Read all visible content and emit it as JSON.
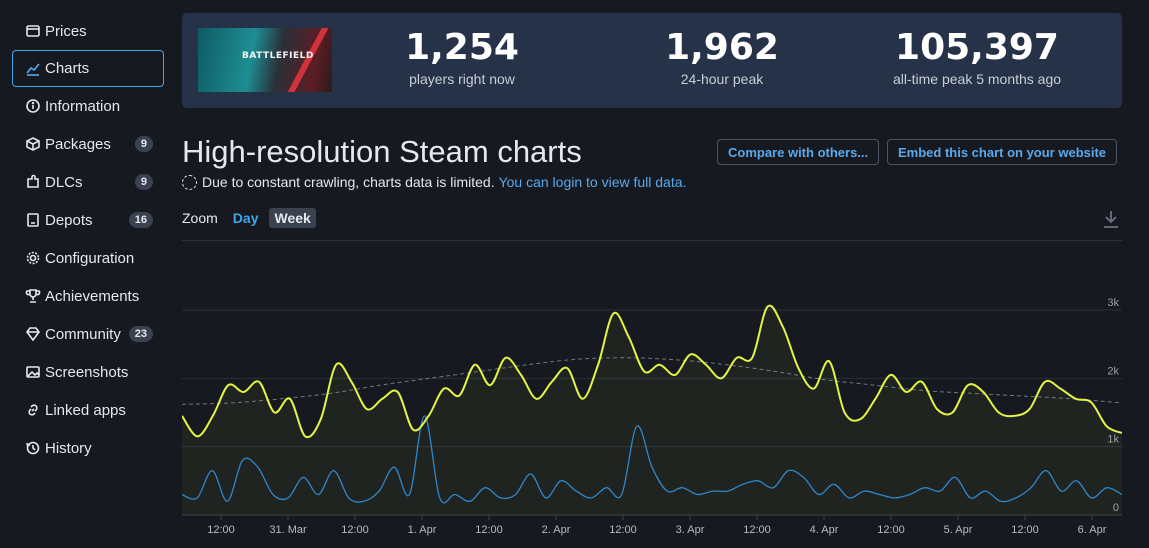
{
  "sidebar": {
    "items": [
      {
        "label": "Prices",
        "icon": "price-tag-icon",
        "active": false,
        "badge": ""
      },
      {
        "label": "Charts",
        "icon": "line-chart-icon",
        "active": true,
        "badge": ""
      },
      {
        "label": "Information",
        "icon": "info-icon",
        "active": false,
        "badge": ""
      },
      {
        "label": "Packages",
        "icon": "box-icon",
        "active": false,
        "badge": "9"
      },
      {
        "label": "DLCs",
        "icon": "puzzle-icon",
        "active": false,
        "badge": "9"
      },
      {
        "label": "Depots",
        "icon": "server-icon",
        "active": false,
        "badge": "16"
      },
      {
        "label": "Configuration",
        "icon": "gear-icon",
        "active": false,
        "badge": ""
      },
      {
        "label": "Achievements",
        "icon": "trophy-icon",
        "active": false,
        "badge": ""
      },
      {
        "label": "Community",
        "icon": "diamond-icon",
        "active": false,
        "badge": "23"
      },
      {
        "label": "Screenshots",
        "icon": "image-icon",
        "active": false,
        "badge": ""
      },
      {
        "label": "Linked apps",
        "icon": "link-icon",
        "active": false,
        "badge": ""
      },
      {
        "label": "History",
        "icon": "history-icon",
        "active": false,
        "badge": ""
      }
    ]
  },
  "banner": {
    "game_logo_text": "BATTLEFIELD",
    "stats": [
      {
        "value": "1,254",
        "label": "players right now"
      },
      {
        "value": "1,962",
        "label": "24-hour peak"
      },
      {
        "value": "105,397",
        "label": "all-time peak 5 months ago"
      }
    ]
  },
  "heading": {
    "title": "High-resolution Steam charts",
    "compare_button": "Compare with others...",
    "embed_button": "Embed this chart on your website",
    "notice_text": "Due to constant crawling, charts data is limited.",
    "notice_link": "You can login to view full data."
  },
  "zoom": {
    "label": "Zoom",
    "options": [
      "Day",
      "Week"
    ],
    "selected": "Week"
  },
  "colors": {
    "accent": "#3ea6ef",
    "players_line": "#e3f542",
    "twitch_line": "#2f86c9",
    "average_line": "#8a8f99"
  },
  "chart_data": {
    "type": "line",
    "x_labels": [
      "12:00",
      "31. Mar",
      "12:00",
      "1. Apr",
      "12:00",
      "2. Apr",
      "12:00",
      "3. Apr",
      "12:00",
      "4. Apr",
      "12:00",
      "5. Apr",
      "12:00",
      "6. Apr"
    ],
    "y_ticks": [
      "0",
      "1k",
      "2k",
      "3k"
    ],
    "ylim": [
      0,
      3000
    ],
    "series": [
      {
        "name": "",
        "color": "#e3f542",
        "values": [
          1450,
          1150,
          1450,
          1900,
          1800,
          1950,
          1500,
          1700,
          1150,
          1400,
          2200,
          1950,
          1550,
          1700,
          1800,
          1250,
          1450,
          1850,
          1750,
          2200,
          1900,
          2300,
          2050,
          1700,
          1950,
          2150,
          1700,
          2200,
          2950,
          2600,
          2100,
          2200,
          2050,
          2350,
          2200,
          2000,
          2300,
          2300,
          3050,
          2750,
          2150,
          1850,
          2250,
          1500,
          1400,
          1700,
          2050,
          1800,
          1950,
          1550,
          1500,
          1900,
          1800,
          1500,
          1450,
          1550,
          1950,
          1850,
          1700,
          1650,
          1300,
          1200
        ]
      },
      {
        "name": "",
        "color": "#2f86c9",
        "values": [
          300,
          250,
          650,
          200,
          800,
          700,
          300,
          250,
          550,
          300,
          650,
          250,
          200,
          350,
          700,
          300,
          1450,
          250,
          300,
          200,
          400,
          250,
          300,
          600,
          250,
          500,
          350,
          250,
          400,
          300,
          1300,
          700,
          350,
          400,
          300,
          350,
          350,
          450,
          500,
          400,
          650,
          550,
          300,
          450,
          250,
          350,
          300,
          250,
          300,
          400,
          350,
          550,
          250,
          350,
          200,
          250,
          400,
          650,
          350,
          500,
          250,
          400,
          300
        ]
      },
      {
        "name": "",
        "color": "#8a8f99",
        "dashed": true,
        "values": [
          1620,
          1640,
          1700,
          1780,
          1900,
          2000,
          2100,
          2200,
          2280,
          2300,
          2270,
          2200,
          2100,
          1980,
          1900,
          1820,
          1780,
          1740,
          1700,
          1640
        ]
      }
    ]
  }
}
